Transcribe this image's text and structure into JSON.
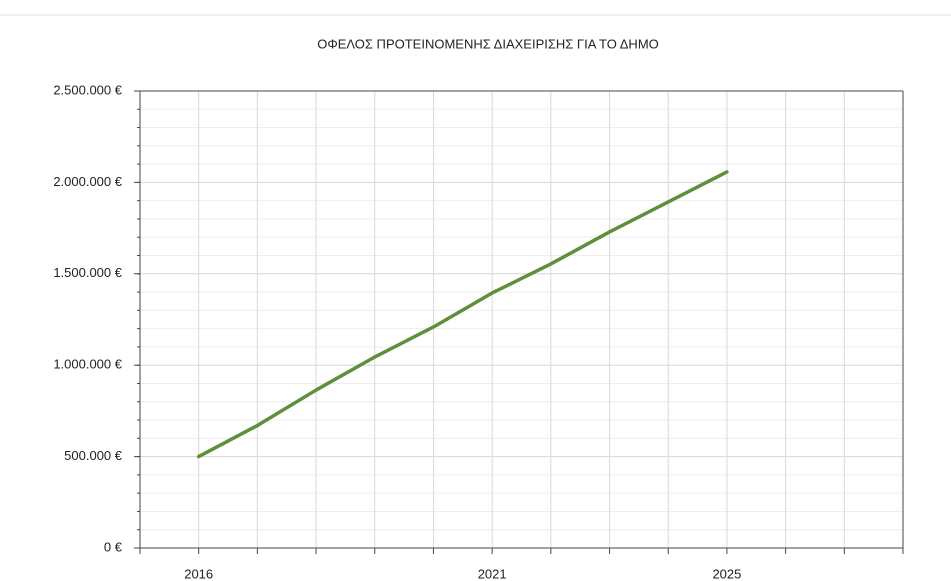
{
  "chart_data": {
    "type": "line",
    "title": "ΟΦΕΛΟΣ ΠΡΟΤΕΙΝΟΜΕΝΗΣ ΔΙΑΧΕΙΡΙΣΗΣ ΓΙΑ ΤΟ ΔΗΜΟ",
    "x": [
      2016,
      2017,
      2018,
      2019,
      2020,
      2021,
      2022,
      2023,
      2024,
      2025
    ],
    "series": [
      {
        "name": "ΟΦΕΛΟΣ",
        "color": "#5e8f3a",
        "values": [
          500000,
          670000,
          864000,
          1045000,
          1209000,
          1395000,
          1554000,
          1729000,
          1893000,
          2057000
        ]
      }
    ],
    "xlim": [
      2015,
      2028
    ],
    "xticks": [
      2016,
      2021,
      2025
    ],
    "xgrid": [
      2015,
      2016,
      2017,
      2018,
      2019,
      2020,
      2021,
      2022,
      2023,
      2024,
      2025,
      2026,
      2027,
      2028
    ],
    "ylim": [
      0,
      2500000
    ],
    "yticks": [
      {
        "value": 0,
        "label": "0 €"
      },
      {
        "value": 500000,
        "label": "500.000 €"
      },
      {
        "value": 1000000,
        "label": "1.000.000 €"
      },
      {
        "value": 1500000,
        "label": "1.500.000 €"
      },
      {
        "value": 2000000,
        "label": "2.000.000 €"
      },
      {
        "value": 2500000,
        "label": "2.500.000 €"
      }
    ],
    "yminor_step": 100000,
    "grid": true
  }
}
